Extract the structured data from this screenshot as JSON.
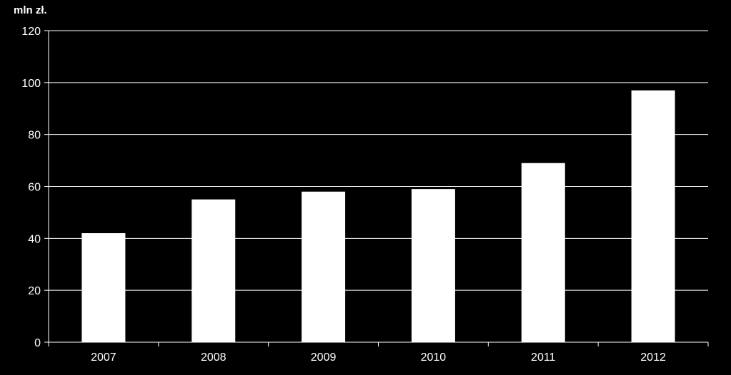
{
  "chart_data": {
    "type": "bar",
    "unit_label": "mln zł.",
    "categories": [
      "2007",
      "2008",
      "2009",
      "2010",
      "2011",
      "2012"
    ],
    "values": [
      42,
      55,
      58,
      59,
      69,
      97
    ],
    "ylim": [
      0,
      120
    ],
    "yticks": [
      0,
      20,
      40,
      60,
      80,
      100,
      120
    ],
    "grid": true,
    "colors": {
      "background": "#000000",
      "bar": "#ffffff",
      "axis": "#ffffff",
      "text": "#ffffff"
    }
  }
}
